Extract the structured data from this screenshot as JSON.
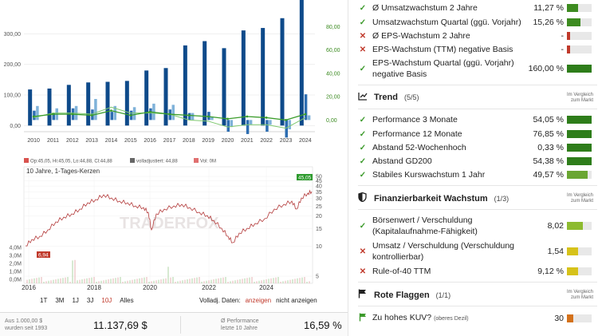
{
  "bar_chart": {
    "y_left_ticks": [
      "300,00",
      "200,00",
      "100,00",
      "0,00"
    ],
    "y_right_ticks": [
      "80,00",
      "60,00",
      "40,00",
      "20,00",
      "0,00"
    ],
    "colors": {
      "revenue": "#0e4a8a",
      "eps": "#7fb2d9",
      "line": "#3a9c2a"
    }
  },
  "price_chart": {
    "legend": [
      {
        "label": "Op:45,05, Hi:45,05, Lo:44,88, Cl:44,88",
        "color": "#d9534f"
      },
      {
        "label": "volladjustiert: 44,88",
        "color": "#555555"
      },
      {
        "label": "Vol: 0M",
        "color": "#e07070"
      }
    ],
    "title": "10 Jahre, 1-Tages-Kerzen",
    "current_label": "45,05",
    "low_label": "6,94",
    "watermark": "TRADERFOX",
    "y_right_ticks": [
      "50",
      "45",
      "40",
      "35",
      "30",
      "25",
      "20",
      "15",
      "10",
      "5"
    ],
    "vol_ticks": [
      "4,0M",
      "3,0M",
      "2,0M",
      "1,0M",
      "0,0M"
    ]
  },
  "range_buttons": [
    "1T",
    "3M",
    "1J",
    "3J",
    "10J",
    "Alles"
  ],
  "range_active": "10J",
  "volume_toggle": {
    "label": "Volladj. Daten:",
    "show": "anzeigen",
    "hide": "nicht anzeigen"
  },
  "summary": {
    "invest_caption_1": "Aus 1.000,00 $",
    "invest_caption_2": "wurden seit 1993",
    "invest_value": "11.137,69 $",
    "perf_caption_1": "Ø Performance",
    "perf_caption_2": "letzte 10 Jahre",
    "perf_value": "16,59 %"
  },
  "growth_rows": [
    {
      "status": "ok",
      "label": "Ø Umsatzwachstum 2 Jahre",
      "value": "11,27 %",
      "fill": 0.45,
      "color": "#3d8b20"
    },
    {
      "status": "ok",
      "label": "Umsatzwachstum Quartal (ggü. Vorjahr)",
      "value": "15,26 %",
      "fill": 0.55,
      "color": "#3d8b20"
    },
    {
      "status": "bad",
      "label": "Ø EPS-Wachstum 2 Jahre",
      "value": "-",
      "fill": 0.12,
      "color": "#c0392b"
    },
    {
      "status": "bad",
      "label": "EPS-Wachstum (TTM) negative Basis",
      "value": "-",
      "fill": 0.12,
      "color": "#c0392b"
    },
    {
      "status": "ok",
      "label_1": "EPS-Wachstum Quartal (ggü. Vorjahr)",
      "label_2": "negative Basis",
      "value": "160,00 %",
      "fill": 1.0,
      "color": "#2e7d1a"
    }
  ],
  "trend": {
    "title": "Trend",
    "count": "(5/5)",
    "compare_1": "Im Vergleich",
    "compare_2": "zum Markt",
    "rows": [
      {
        "label": "Performance 3 Monate",
        "value": "54,05 %",
        "fill": 1.0,
        "color": "#2e7d1a"
      },
      {
        "label": "Performance 12 Monate",
        "value": "76,85 %",
        "fill": 1.0,
        "color": "#2e7d1a"
      },
      {
        "label": "Abstand 52-Wochenhoch",
        "value": "0,33 %",
        "fill": 1.0,
        "color": "#2e7d1a"
      },
      {
        "label": "Abstand GD200",
        "value": "54,38 %",
        "fill": 1.0,
        "color": "#2e7d1a"
      },
      {
        "label": "Stabiles Kurswachstum 1 Jahr",
        "value": "49,57 %",
        "fill": 0.85,
        "color": "#6aa632"
      }
    ]
  },
  "finance": {
    "title": "Finanzierbarkeit Wachstum",
    "count": "(1/3)",
    "compare_1": "Im Vergleich",
    "compare_2": "zum Markt",
    "rows": [
      {
        "status": "ok",
        "label_1": "Börsenwert / Verschuldung",
        "label_2": "(Kapitalaufnahme-Fähigkeit)",
        "value": "8,02",
        "fill": 0.65,
        "color": "#8dbb2f"
      },
      {
        "status": "bad",
        "label_1": "Umsatz / Verschuldung (Verschuldung",
        "label_2": "kontrollierbar)",
        "value": "1,54",
        "fill": 0.45,
        "color": "#d6c21a"
      },
      {
        "status": "bad",
        "label_1": "Rule-of-40 TTM",
        "label_2": "",
        "value": "9,12 %",
        "fill": 0.45,
        "color": "#d6c21a"
      }
    ]
  },
  "flags": {
    "title": "Rote Flaggen",
    "count": "(1/1)",
    "compare_1": "Im Vergleich",
    "compare_2": "zum Markt",
    "row": {
      "label": "Zu hohes KUV?",
      "sub": "(oberes Dezil)",
      "value": "30",
      "fill": 0.25,
      "color": "#d4711a"
    }
  },
  "chart_data": {
    "type": "bar",
    "categories": [
      "2010",
      "2011",
      "2012",
      "2013",
      "2014",
      "2015",
      "2016",
      "2017",
      "2018",
      "2019",
      "2020",
      "2021",
      "2022",
      "2023",
      "2024"
    ],
    "ylim": [
      -20,
      400
    ],
    "y2lim": [
      -10,
      100
    ],
    "series": [
      {
        "values": [
          118,
          121,
          133,
          141,
          143,
          146,
          180,
          188,
          262,
          276,
          253,
          311,
          319,
          351,
          412
        ]
      },
      {
        "values": [
          8,
          6,
          10,
          9,
          7,
          8,
          10,
          9,
          6,
          7,
          -10,
          -12,
          -10,
          -15,
          22
        ]
      },
      {
        "values": [
          12,
          10,
          12,
          18,
          12,
          11,
          14,
          13,
          6,
          3,
          -6,
          -4,
          -4,
          -8,
          4
        ]
      },
      {
        "values": [
          3,
          5,
          5,
          4,
          8,
          4,
          7,
          5,
          4,
          3,
          1,
          3,
          2,
          0,
          5
        ]
      },
      {
        "values": [
          2,
          6,
          6,
          5,
          11,
          6,
          6,
          5,
          0,
          -1,
          -6,
          -4,
          -4,
          -7,
          2
        ]
      }
    ]
  }
}
